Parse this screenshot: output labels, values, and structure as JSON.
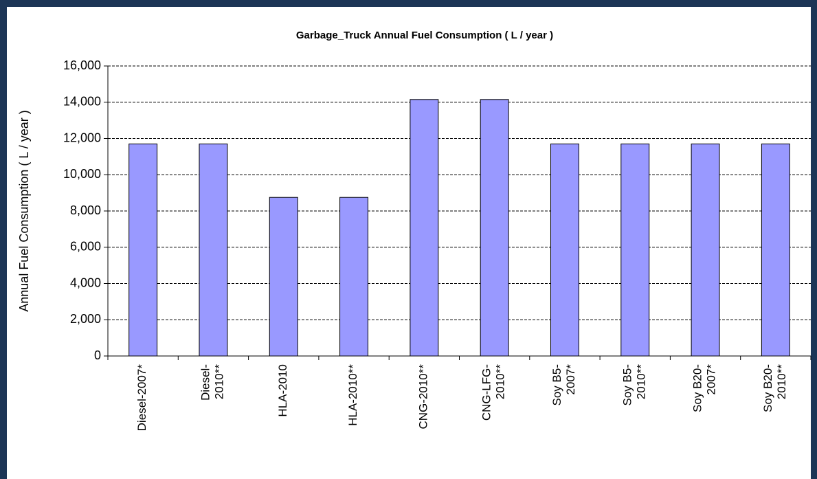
{
  "chart_data": {
    "type": "bar",
    "title": "Garbage_Truck Annual Fuel Consumption ( L / year )",
    "y_label": "Annual Fuel Consumption ( L / year )",
    "categories": [
      "Diesel-2007*",
      "Diesel-\n2010**",
      "HLA-2010",
      "HLA-2010**",
      "CNG-2010**",
      "CNG-LFG-\n2010**",
      "Soy B5-\n2007*",
      "Soy B5-\n2010**",
      "Soy B20-\n2007*",
      "Soy B20-\n2010**"
    ],
    "values": [
      11700,
      11700,
      8750,
      8750,
      14150,
      14150,
      11700,
      11700,
      11700,
      11700
    ],
    "color": "#9999ff",
    "ylim": [
      0,
      16000
    ],
    "yticks": [
      0,
      {
        "value": 2000,
        "label": "2,000"
      },
      {
        "value": 4000,
        "label": "4,000"
      },
      {
        "value": 6000,
        "label": "6,000"
      },
      {
        "value": 8000,
        "label": "8,000"
      },
      {
        "value": 10000,
        "label": "10,000"
      },
      {
        "value": 12000,
        "label": "12,000"
      },
      {
        "value": 14000,
        "label": "14,000"
      },
      {
        "value": 16000,
        "label": "16,000"
      }
    ],
    "grid": true
  }
}
